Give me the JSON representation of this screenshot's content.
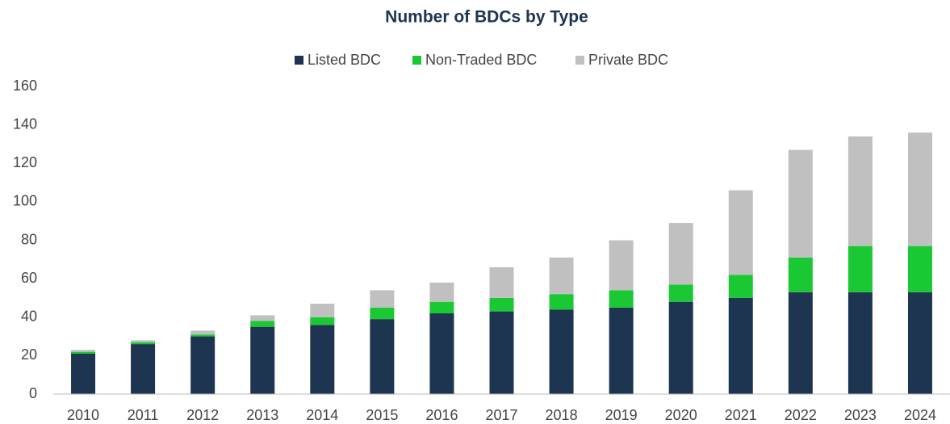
{
  "chart_data": {
    "type": "stacked_bar",
    "title": "Number of BDCs by Type",
    "categories": [
      "2010",
      "2011",
      "2012",
      "2013",
      "2014",
      "2015",
      "2016",
      "2017",
      "2018",
      "2019",
      "2020",
      "2021",
      "2022",
      "2023",
      "2024"
    ],
    "series": [
      {
        "name": "Listed BDC",
        "color": "#1d3550",
        "values": [
          21,
          26,
          30,
          35,
          36,
          39,
          42,
          43,
          44,
          45,
          48,
          50,
          53,
          53,
          53
        ]
      },
      {
        "name": "Non-Traded BDC",
        "color": "#19c832",
        "values": [
          1,
          1,
          1,
          3,
          4,
          6,
          6,
          7,
          8,
          9,
          9,
          12,
          18,
          24,
          24
        ]
      },
      {
        "name": "Private BDC",
        "color": "#c0c0c0",
        "values": [
          1,
          1,
          2,
          3,
          7,
          9,
          10,
          16,
          19,
          26,
          32,
          44,
          56,
          57,
          59
        ]
      }
    ],
    "ylim": [
      0,
      160
    ],
    "yticks": [
      0,
      20,
      40,
      60,
      80,
      100,
      120,
      140,
      160
    ],
    "grid": false,
    "legend": "top"
  }
}
